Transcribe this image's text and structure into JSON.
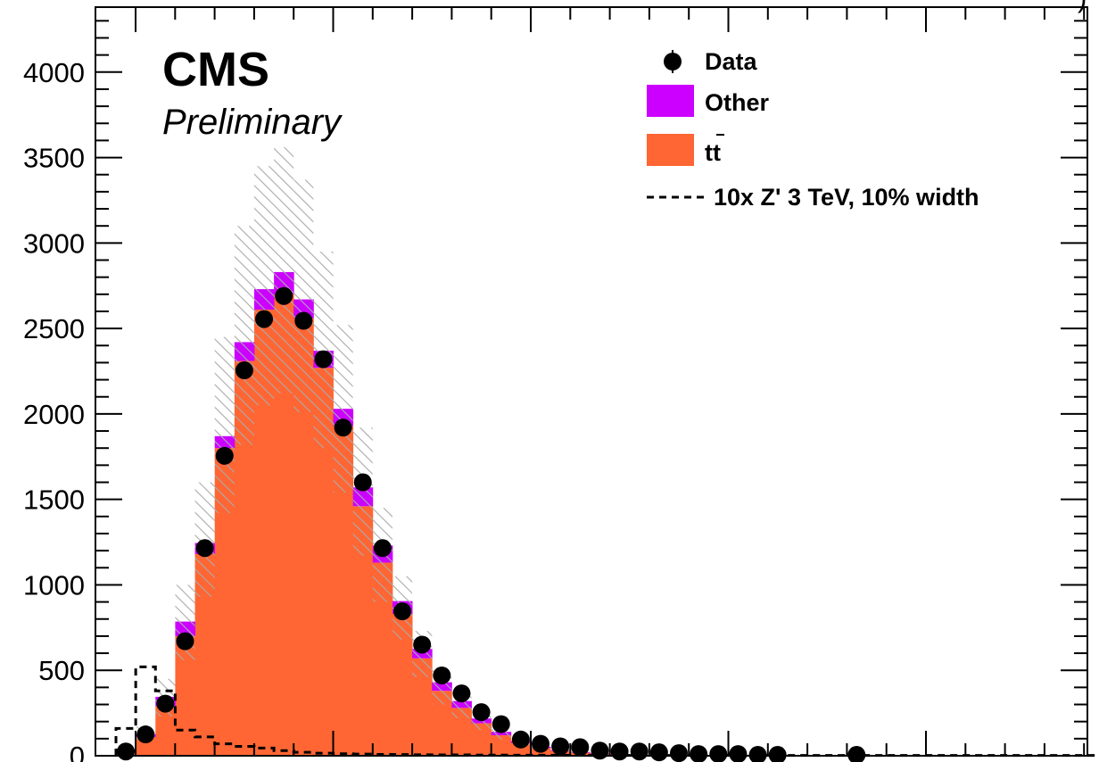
{
  "chart_data": {
    "type": "bar",
    "title": "",
    "xlabel": "",
    "ylabel": "",
    "ylim": [
      0,
      4380
    ],
    "y_ticks": [
      "0",
      "500",
      "1000",
      "1500",
      "2000",
      "2500",
      "3000",
      "3500",
      "4000"
    ],
    "experiment_label": "CMS",
    "status_label": "Preliminary",
    "header_fragment": ")",
    "legend": {
      "data": "Data",
      "other": "Other",
      "ttbar": "tt",
      "signal": "10x Z' 3 TeV, 10% width"
    },
    "colors": {
      "ttbar": "#ff6633",
      "other": "#cc00ff",
      "data": "#000000",
      "signal": "#000000",
      "uncertainty": "#aaaaaa"
    },
    "bin_count": 50,
    "ttbar": [
      5,
      110,
      290,
      700,
      1180,
      1800,
      2310,
      2610,
      2700,
      2560,
      2270,
      1930,
      1460,
      1130,
      830,
      570,
      380,
      280,
      190,
      120,
      75,
      45,
      28,
      18,
      12,
      8,
      5,
      4,
      3,
      2,
      2,
      1,
      1,
      1,
      1,
      1,
      1,
      0,
      0,
      0,
      0,
      0,
      0,
      0,
      0,
      0,
      0,
      0,
      0,
      0
    ],
    "other": [
      1,
      15,
      55,
      85,
      65,
      70,
      110,
      120,
      130,
      110,
      100,
      100,
      110,
      100,
      75,
      55,
      50,
      40,
      28,
      20,
      12,
      8,
      5,
      4,
      3,
      2,
      1,
      1,
      1,
      1,
      1,
      0,
      0,
      0,
      0,
      0,
      0,
      0,
      0,
      0,
      0,
      0,
      0,
      0,
      0,
      0,
      0,
      0,
      0,
      0
    ],
    "uncertainty_up": [
      8,
      170,
      450,
      1000,
      1600,
      2450,
      3100,
      3450,
      3560,
      3370,
      2950,
      2520,
      1920,
      1450,
      1050,
      730,
      500,
      370,
      250,
      160,
      100,
      60,
      38,
      25,
      17,
      12,
      8,
      6,
      5,
      4,
      3,
      2,
      2,
      1,
      1,
      1,
      1,
      0,
      0,
      0,
      0,
      0,
      0,
      0,
      0,
      0,
      0,
      0,
      0,
      0
    ],
    "uncertainty_down": [
      4,
      95,
      230,
      560,
      930,
      1420,
      1820,
      2050,
      2120,
      2010,
      1800,
      1540,
      1170,
      900,
      680,
      460,
      300,
      220,
      150,
      95,
      60,
      35,
      22,
      14,
      9,
      6,
      4,
      3,
      2,
      1,
      1,
      1,
      1,
      0,
      0,
      0,
      0,
      0,
      0,
      0,
      0,
      0,
      0,
      0,
      0,
      0,
      0,
      0,
      0,
      0
    ],
    "data_points": [
      {
        "bin": 0,
        "value": 25
      },
      {
        "bin": 1,
        "value": 125
      },
      {
        "bin": 2,
        "value": 305
      },
      {
        "bin": 3,
        "value": 670
      },
      {
        "bin": 4,
        "value": 1215
      },
      {
        "bin": 5,
        "value": 1755
      },
      {
        "bin": 6,
        "value": 2255
      },
      {
        "bin": 7,
        "value": 2555
      },
      {
        "bin": 8,
        "value": 2690
      },
      {
        "bin": 9,
        "value": 2545
      },
      {
        "bin": 10,
        "value": 2320
      },
      {
        "bin": 11,
        "value": 1920
      },
      {
        "bin": 12,
        "value": 1600
      },
      {
        "bin": 13,
        "value": 1215
      },
      {
        "bin": 14,
        "value": 845
      },
      {
        "bin": 15,
        "value": 650
      },
      {
        "bin": 16,
        "value": 470
      },
      {
        "bin": 17,
        "value": 365
      },
      {
        "bin": 18,
        "value": 255
      },
      {
        "bin": 19,
        "value": 185
      },
      {
        "bin": 20,
        "value": 95
      },
      {
        "bin": 21,
        "value": 70
      },
      {
        "bin": 22,
        "value": 55
      },
      {
        "bin": 23,
        "value": 50
      },
      {
        "bin": 24,
        "value": 30
      },
      {
        "bin": 25,
        "value": 25
      },
      {
        "bin": 26,
        "value": 25
      },
      {
        "bin": 27,
        "value": 20
      },
      {
        "bin": 28,
        "value": 15
      },
      {
        "bin": 29,
        "value": 10
      },
      {
        "bin": 30,
        "value": 10
      },
      {
        "bin": 31,
        "value": 10
      },
      {
        "bin": 32,
        "value": 5
      },
      {
        "bin": 33,
        "value": 5
      },
      {
        "bin": 37,
        "value": 5
      }
    ],
    "signal_x10": [
      160,
      520,
      380,
      150,
      110,
      70,
      55,
      45,
      30,
      20,
      15,
      12,
      10,
      8,
      7,
      6,
      5,
      5,
      4,
      4,
      3,
      3,
      3,
      3,
      2,
      2,
      2,
      2,
      2,
      2,
      2,
      2,
      2,
      2,
      2,
      2,
      2,
      2,
      2,
      2,
      2,
      2,
      2,
      2,
      2,
      2,
      2,
      2,
      2,
      2
    ]
  }
}
